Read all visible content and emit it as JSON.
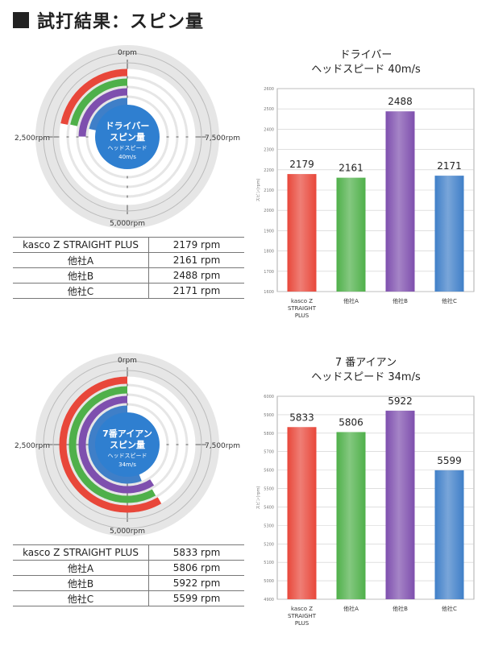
{
  "page": {
    "title": "試打結果：スピン量"
  },
  "radial_labels": {
    "top": "0rpm",
    "left": "2,500rpm",
    "right": "7,500rpm",
    "bottom": "5,000rpm"
  },
  "sections": [
    {
      "center_text": [
        "ドライバー",
        "スピン量",
        "ヘッドスピード",
        "40m/s"
      ],
      "table": [
        {
          "name": "kasco Z STRAIGHT PLUS",
          "value": "2179 rpm"
        },
        {
          "name": "他社A",
          "value": "2161 rpm"
        },
        {
          "name": "他社B",
          "value": "2488 rpm"
        },
        {
          "name": "他社C",
          "value": "2171 rpm"
        }
      ],
      "title_lines": [
        "ドライバー",
        "ヘッドスピード 40m/s"
      ]
    },
    {
      "center_text": [
        "7番アイアン",
        "スピン量",
        "ヘッドスピード",
        "34m/s"
      ],
      "table": [
        {
          "name": "kasco Z STRAIGHT PLUS",
          "value": "5833 rpm"
        },
        {
          "name": "他社A",
          "value": "5806 rpm"
        },
        {
          "name": "他社B",
          "value": "5922 rpm"
        },
        {
          "name": "他社C",
          "value": "5599 rpm"
        }
      ],
      "title_lines": [
        "7 番アイアン",
        "ヘッドスピード 34m/s"
      ]
    }
  ],
  "colors": {
    "kasco": "#e8473a",
    "A": "#4fb04a",
    "B": "#7e4fae",
    "C": "#3f7fc8",
    "dial_bg": "#e6e6e6",
    "center": "#2f7fd0"
  },
  "chart_data": [
    {
      "type": "bar",
      "categories": [
        "kasco Z STRAIGHT PLUS",
        "他社A",
        "他社B",
        "他社C"
      ],
      "values": [
        2179,
        2161,
        2488,
        2171
      ],
      "title": "ドライバー ヘッドスピード 40m/s",
      "ylabel": "スピン(rpm)",
      "ylim": [
        1600,
        2600
      ],
      "yticks": [
        1600,
        1700,
        1800,
        1900,
        2000,
        2100,
        2200,
        2300,
        2400,
        2500,
        2600
      ]
    },
    {
      "type": "bar",
      "categories": [
        "kasco Z STRAIGHT PLUS",
        "他社A",
        "他社B",
        "他社C"
      ],
      "values": [
        5833,
        5806,
        5922,
        5599
      ],
      "title": "7 番アイアン ヘッドスピード 34m/s",
      "ylabel": "スピン(rpm)",
      "ylim": [
        4900,
        6000
      ],
      "yticks": [
        4900,
        5000,
        5100,
        5200,
        5300,
        5400,
        5500,
        5600,
        5700,
        5800,
        5900,
        6000
      ]
    }
  ]
}
